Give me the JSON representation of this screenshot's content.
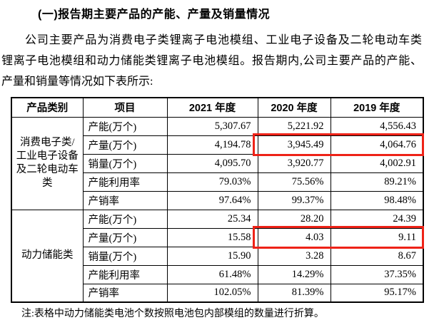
{
  "page": {
    "heading": "(一)报告期主要产品的产能、产量及销量情况",
    "paragraph_lines": [
      "公司主要产品为消费电子类锂离子电池模组、工业电子设备及二轮电动车类",
      "锂离子电池模组和动力储能类锂离子电池模组。报告期内,公司主要产品的产能、",
      "产量和销量等情况如下表所示:"
    ],
    "note": "注:表格中动力储能类电池个数按照电池包内部模组的数量进行折算。"
  },
  "table": {
    "headers": [
      "产品类别",
      "项目",
      "2021 年度",
      "2020 年度",
      "2019 年度"
    ],
    "groups": [
      {
        "category": "消费电子类/工业电子设备及二轮电动车类",
        "rows": [
          {
            "item": "产能(万个)",
            "y2021": "5,307.67",
            "y2020": "5,221.92",
            "y2019": "4,556.43",
            "highlight": false
          },
          {
            "item": "产量(万个)",
            "y2021": "4,194.78",
            "y2020": "3,945.49",
            "y2019": "4,064.76",
            "highlight": true
          },
          {
            "item": "销量(万个)",
            "y2021": "4,095.70",
            "y2020": "3,920.77",
            "y2019": "4,002.91",
            "highlight": false
          },
          {
            "item": "产能利用率",
            "y2021": "79.03%",
            "y2020": "75.56%",
            "y2019": "89.21%",
            "highlight": false
          },
          {
            "item": "产销率",
            "y2021": "97.64%",
            "y2020": "99.37%",
            "y2019": "98.48%",
            "highlight": false
          }
        ]
      },
      {
        "category": "动力储能类",
        "rows": [
          {
            "item": "产能(万个)",
            "y2021": "25.34",
            "y2020": "28.20",
            "y2019": "24.39",
            "highlight": false
          },
          {
            "item": "产量(万个)",
            "y2021": "15.58",
            "y2020": "4.03",
            "y2019": "9.11",
            "highlight": true
          },
          {
            "item": "销量(万个)",
            "y2021": "15.90",
            "y2020": "3.28",
            "y2019": "8.67",
            "highlight": false
          },
          {
            "item": "产能利用率",
            "y2021": "61.48%",
            "y2020": "14.29%",
            "y2019": "37.35%",
            "highlight": false
          },
          {
            "item": "产销率",
            "y2021": "102.05%",
            "y2020": "81.39%",
            "y2019": "95.17%",
            "highlight": false
          }
        ]
      }
    ]
  },
  "colors": {
    "highlight_border": "#ee2217",
    "text": "#000000",
    "background": "#ffffff",
    "table_border": "#000000"
  }
}
